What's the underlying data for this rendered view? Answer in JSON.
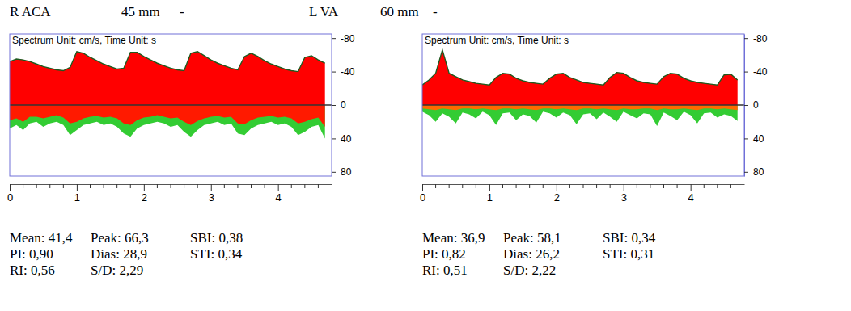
{
  "chart_data": [
    {
      "type": "area",
      "header": [
        "R ACA",
        "45 mm",
        "-"
      ],
      "annotation": "Spectrum Unit: cm/s, Time Unit: s",
      "x": [
        0,
        0.1,
        0.2,
        0.3,
        0.4,
        0.5,
        0.6,
        0.7,
        0.8,
        0.9,
        1,
        1.1,
        1.2,
        1.3,
        1.4,
        1.5,
        1.6,
        1.7,
        1.8,
        1.9,
        2,
        2.1,
        2.2,
        2.3,
        2.4,
        2.5,
        2.6,
        2.7,
        2.8,
        2.9,
        3,
        3.1,
        3.2,
        3.3,
        3.4,
        3.5,
        3.6,
        3.7,
        3.8,
        3.9,
        4,
        4.1,
        4.2,
        4.3,
        4.4,
        4.5,
        4.6,
        4.7
      ],
      "series": [
        {
          "color": "#33cc33",
          "values": [
            28,
            24,
            30,
            22,
            20,
            26,
            22,
            20,
            24,
            36,
            30,
            24,
            22,
            20,
            24,
            22,
            26,
            34,
            38,
            28,
            24,
            22,
            20,
            22,
            26,
            24,
            32,
            38,
            30,
            24,
            22,
            20,
            24,
            22,
            34,
            36,
            28,
            24,
            22,
            20,
            24,
            22,
            26,
            36,
            32,
            26,
            24,
            40
          ]
        },
        {
          "color": "#ff1a00",
          "values": [
            18,
            16,
            20,
            14,
            14,
            16,
            14,
            12,
            15,
            22,
            20,
            16,
            14,
            13,
            15,
            14,
            16,
            22,
            24,
            18,
            15,
            14,
            12,
            14,
            16,
            15,
            20,
            24,
            19,
            16,
            14,
            13,
            15,
            14,
            22,
            23,
            18,
            15,
            14,
            13,
            15,
            14,
            16,
            22,
            20,
            17,
            15,
            26
          ]
        },
        {
          "color": "#ff0000",
          "values": [
            -52,
            -55,
            -54,
            -52,
            -49,
            -46,
            -44,
            -42,
            -41,
            -45,
            -64,
            -62,
            -57,
            -53,
            -49,
            -46,
            -43,
            -44,
            -63,
            -63,
            -58,
            -54,
            -50,
            -47,
            -44,
            -42,
            -41,
            -62,
            -64,
            -59,
            -54,
            -50,
            -47,
            -44,
            -42,
            -58,
            -62,
            -58,
            -53,
            -49,
            -46,
            -43,
            -41,
            -40,
            -57,
            -59,
            -54,
            -50
          ]
        }
      ],
      "xlim": [
        0,
        4.8
      ],
      "xticks": [
        0,
        1,
        2,
        3,
        4
      ],
      "xminorticks": [
        0.2,
        0.4,
        0.6,
        0.8,
        1.2,
        1.4,
        1.6,
        1.8,
        2.2,
        2.4,
        2.6,
        2.8,
        3.2,
        3.4,
        3.6,
        3.8,
        4.2,
        4.4,
        4.6
      ],
      "ylim": [
        85,
        -85
      ],
      "yticks": [
        -80,
        -40,
        0,
        40,
        80
      ],
      "stats": [
        [
          "Mean: 41,4",
          "Peak: 66,3",
          "SBI: 0,38"
        ],
        [
          "PI: 0,90",
          "Dias: 28,9",
          "STI: 0,34"
        ],
        [
          "RI: 0,56",
          "S/D: 2,29"
        ]
      ]
    },
    {
      "type": "area",
      "header": [
        "L VA",
        "60 mm",
        "-"
      ],
      "annotation": "Spectrum Unit: cm/s, Time Unit: s",
      "x": [
        0,
        0.1,
        0.2,
        0.3,
        0.4,
        0.5,
        0.6,
        0.7,
        0.8,
        0.9,
        1,
        1.1,
        1.2,
        1.3,
        1.4,
        1.5,
        1.6,
        1.7,
        1.8,
        1.9,
        2,
        2.1,
        2.2,
        2.3,
        2.4,
        2.5,
        2.6,
        2.7,
        2.8,
        2.9,
        3,
        3.1,
        3.2,
        3.3,
        3.4,
        3.5,
        3.6,
        3.7,
        3.8,
        3.9,
        4,
        4.1,
        4.2,
        4.3,
        4.4,
        4.5,
        4.6,
        4.7
      ],
      "series": [
        {
          "color": "#33cc33",
          "values": [
            8,
            12,
            20,
            10,
            14,
            22,
            9,
            11,
            16,
            8,
            12,
            24,
            10,
            9,
            18,
            11,
            13,
            21,
            8,
            10,
            15,
            9,
            12,
            23,
            11,
            10,
            17,
            9,
            14,
            20,
            8,
            12,
            16,
            10,
            11,
            25,
            9,
            13,
            18,
            8,
            12,
            22,
            10,
            9,
            15,
            11,
            13,
            19
          ]
        },
        {
          "color": "#ff6a00",
          "values": [
            4,
            5,
            6,
            4,
            5,
            6,
            4,
            4,
            5,
            4,
            5,
            6,
            4,
            4,
            5,
            4,
            5,
            6,
            4,
            4,
            5,
            4,
            5,
            6,
            4,
            4,
            5,
            4,
            5,
            6,
            4,
            5,
            5,
            4,
            4,
            6,
            4,
            5,
            5,
            4,
            5,
            6,
            4,
            4,
            5,
            4,
            5,
            6
          ]
        },
        {
          "color": "#ff0000",
          "values": [
            -24,
            -30,
            -38,
            -66,
            -38,
            -34,
            -30,
            -28,
            -26,
            -25,
            -24,
            -33,
            -38,
            -37,
            -32,
            -29,
            -27,
            -26,
            -25,
            -32,
            -37,
            -38,
            -33,
            -30,
            -27,
            -26,
            -25,
            -24,
            -33,
            -39,
            -38,
            -33,
            -29,
            -27,
            -26,
            -25,
            -34,
            -38,
            -37,
            -32,
            -29,
            -27,
            -26,
            -25,
            -24,
            -36,
            -37,
            -30
          ]
        }
      ],
      "xlim": [
        0,
        4.8
      ],
      "xticks": [
        0,
        1,
        2,
        3,
        4
      ],
      "xminorticks": [
        0.2,
        0.4,
        0.6,
        0.8,
        1.2,
        1.4,
        1.6,
        1.8,
        2.2,
        2.4,
        2.6,
        2.8,
        3.2,
        3.4,
        3.6,
        3.8,
        4.2,
        4.4,
        4.6
      ],
      "ylim": [
        85,
        -85
      ],
      "yticks": [
        -80,
        -40,
        0,
        40,
        80
      ],
      "stats": [
        [
          "Mean: 36,9",
          "Peak: 58,1",
          "SBI: 0,34"
        ],
        [
          "PI: 0,82",
          "Dias: 26,2",
          "STI: 0,31"
        ],
        [
          "RI: 0,51",
          "S/D: 2,22"
        ]
      ]
    }
  ]
}
